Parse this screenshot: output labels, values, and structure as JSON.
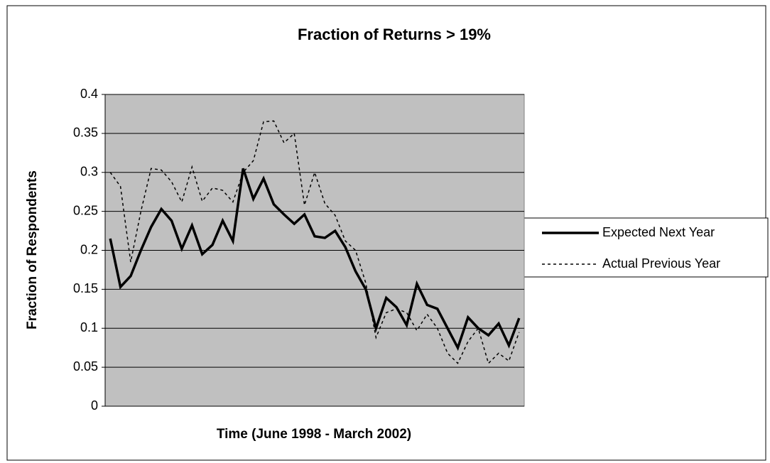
{
  "chart_data": {
    "type": "line",
    "title": "Fraction of Returns > 19%",
    "xlabel": "Time (June 1998 - March 2002)",
    "ylabel": "Fraction of Respondents",
    "categories": [
      null,
      null,
      null,
      null,
      null,
      null,
      null,
      null,
      null,
      null,
      null,
      null,
      null,
      null,
      null,
      null,
      null,
      null,
      null,
      null,
      null,
      null,
      null,
      null,
      null,
      null,
      null,
      null,
      null,
      null,
      null,
      null,
      null,
      null,
      null,
      null,
      null,
      null,
      null,
      null,
      null
    ],
    "series": [
      {
        "name": "Expected Next Year",
        "color": "#000000",
        "line_style": "solid",
        "values": [
          0.215,
          0.153,
          0.167,
          0.2,
          0.23,
          0.253,
          0.238,
          0.202,
          0.232,
          0.195,
          0.207,
          0.238,
          0.212,
          0.305,
          0.266,
          0.292,
          0.259,
          0.246,
          0.234,
          0.246,
          0.218,
          0.216,
          0.225,
          0.204,
          0.173,
          0.15,
          0.1,
          0.139,
          0.127,
          0.104,
          0.157,
          0.13,
          0.125,
          0.1,
          0.075,
          0.114,
          0.1,
          0.091,
          0.106,
          0.078,
          0.113
        ]
      },
      {
        "name": "Actual Previous Year",
        "color": "#000000",
        "line_style": "dashed",
        "values": [
          0.3,
          0.282,
          0.185,
          0.25,
          0.305,
          0.303,
          0.288,
          0.262,
          0.307,
          0.263,
          0.28,
          0.277,
          0.262,
          0.3,
          0.315,
          0.365,
          0.366,
          0.338,
          0.35,
          0.258,
          0.3,
          0.26,
          0.245,
          0.212,
          0.2,
          0.158,
          0.088,
          0.12,
          0.125,
          0.12,
          0.097,
          0.118,
          0.1,
          0.068,
          0.055,
          0.083,
          0.1,
          0.055,
          0.068,
          0.058,
          0.095
        ]
      }
    ],
    "ylim": [
      0,
      0.4
    ],
    "yticks": [
      0,
      0.05,
      0.1,
      0.15,
      0.2,
      0.25,
      0.3,
      0.35,
      0.4
    ],
    "grid": true,
    "legend": "right",
    "plot_background": "#c0c0c0"
  }
}
